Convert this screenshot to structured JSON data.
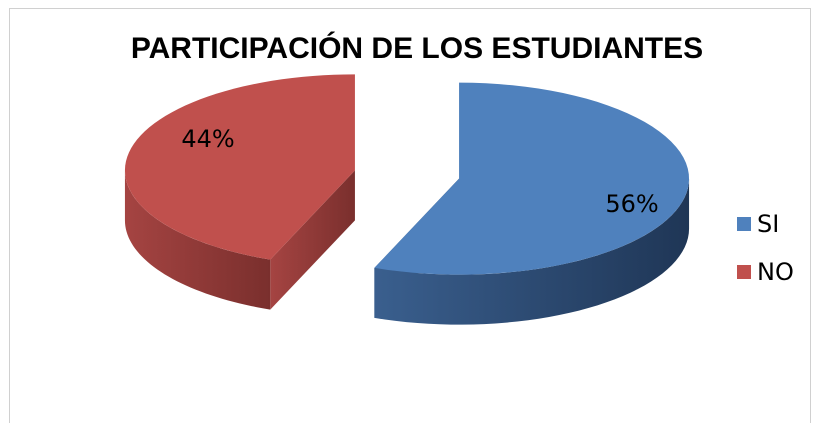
{
  "chart_data": {
    "type": "pie",
    "title": "PARTICIPACIÓN DE LOS ESTUDIANTES",
    "categories": [
      "SI",
      "NO"
    ],
    "values": [
      56,
      44
    ],
    "value_labels": [
      "56%",
      "44%"
    ],
    "colors": [
      "#4f81bd",
      "#c0504d"
    ],
    "legend": "right",
    "three_d": true,
    "exploded": true
  }
}
